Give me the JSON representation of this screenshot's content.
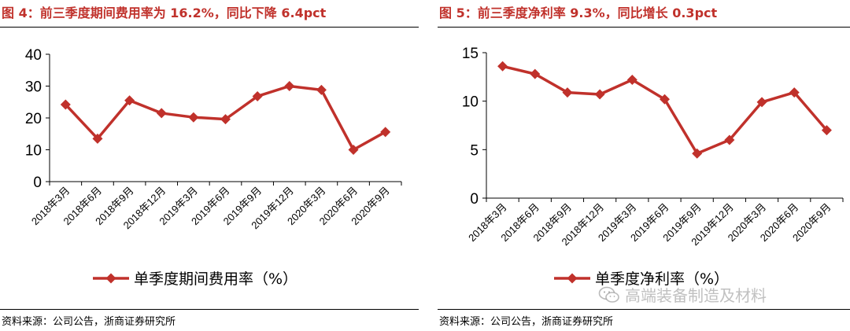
{
  "line_color": "#c0312b",
  "title_color": "#c0312b",
  "left": {
    "title": "图 4：前三季度期间费用率为 16.2%，同比下降 6.4pct",
    "source": "资料来源：公司公告，浙商证券研究所"
  },
  "right": {
    "title": "图 5：前三季度净利率 9.3%，同比增长 0.3pct",
    "source": "资料来源：公司公告，浙商证券研究所"
  },
  "watermark": {
    "text": "高端装备制造及材料",
    "icon": "wechat-icon"
  },
  "chart_data": [
    {
      "type": "line",
      "categories": [
        "2018年3月",
        "2018年6月",
        "2018年9月",
        "2018年12月",
        "2019年3月",
        "2019年6月",
        "2019年9月",
        "2019年12月",
        "2020年3月",
        "2020年6月",
        "2020年9月"
      ],
      "series": [
        {
          "name": "单季度期间费用率（%）",
          "values": [
            24.2,
            13.5,
            25.5,
            21.5,
            20.2,
            19.6,
            26.8,
            30.0,
            28.8,
            10.0,
            15.6
          ]
        }
      ],
      "ylim": [
        0,
        40
      ],
      "yticks": [
        0,
        10,
        20,
        30,
        40
      ],
      "title": "图 4：前三季度期间费用率为 16.2%，同比下降 6.4pct",
      "xlabel": "",
      "ylabel": "",
      "legend": "bottom"
    },
    {
      "type": "line",
      "categories": [
        "2018年3月",
        "2018年6月",
        "2018年9月",
        "2018年12月",
        "2019年3月",
        "2019年6月",
        "2019年9月",
        "2019年12月",
        "2020年3月",
        "2020年6月",
        "2020年9月"
      ],
      "series": [
        {
          "name": "单季度净利率（%）",
          "values": [
            13.6,
            12.8,
            10.9,
            10.7,
            12.2,
            10.2,
            4.6,
            6.0,
            9.9,
            10.9,
            7.0
          ]
        }
      ],
      "ylim": [
        0,
        15
      ],
      "yticks": [
        0,
        5,
        10,
        15
      ],
      "title": "图 5：前三季度净利率 9.3%，同比增长 0.3pct",
      "xlabel": "",
      "ylabel": "",
      "legend": "bottom"
    }
  ]
}
